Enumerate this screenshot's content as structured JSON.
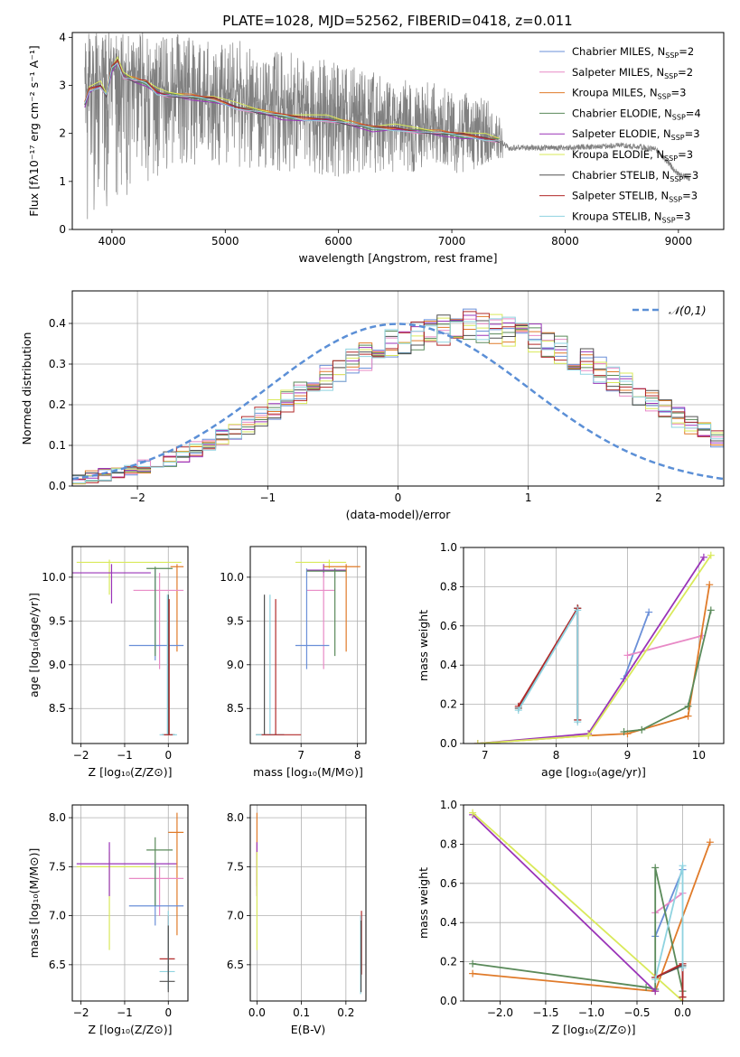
{
  "figure_title": "PLATE=1028, MJD=52562, FIBERID=0418, z=0.011",
  "colors": {
    "Chabrier MILES": "#6a8fd8",
    "Salpeter MILES": "#e88ac6",
    "Kroupa MILES": "#e07b2a",
    "Chabrier ELODIE": "#5a8a5a",
    "Salpeter ELODIE": "#9a34b8",
    "Kroupa ELODIE": "#d9e95a",
    "Chabrier STELIB": "#505050",
    "Salpeter STELIB": "#b22a2a",
    "Kroupa STELIB": "#8fd3e0",
    "data": "#808080",
    "gaussian": "#5b8fd6"
  },
  "chart_data": [
    {
      "id": "spectrum",
      "type": "line",
      "title": "PLATE=1028, MJD=52562, FIBERID=0418, z=0.011",
      "xlabel": "wavelength [Angstrom, rest frame]",
      "ylabel": "Flux [fλ10⁻¹⁷ erg cm⁻² s⁻¹ A⁻¹]",
      "xlim": [
        3650,
        9400
      ],
      "ylim": [
        0,
        4.1
      ],
      "xticks": [
        4000,
        5000,
        6000,
        7000,
        8000,
        9000
      ],
      "yticks": [
        0,
        1,
        2,
        3,
        4
      ],
      "grid": false,
      "legend_position": "top-right",
      "legend": [
        {
          "model": "Chabrier MILES",
          "label": "Chabrier MILES, N",
          "sub": "SSP",
          "n": "=2"
        },
        {
          "model": "Salpeter MILES",
          "label": "Salpeter MILES, N",
          "sub": "SSP",
          "n": "=2"
        },
        {
          "model": "Kroupa MILES",
          "label": "Kroupa MILES, N",
          "sub": "SSP",
          "n": "=3"
        },
        {
          "model": "Chabrier ELODIE",
          "label": "Chabrier ELODIE, N",
          "sub": "SSP",
          "n": "=4"
        },
        {
          "model": "Salpeter ELODIE",
          "label": "Salpeter ELODIE, N",
          "sub": "SSP",
          "n": "=3"
        },
        {
          "model": "Kroupa ELODIE",
          "label": "Kroupa ELODIE, N",
          "sub": "SSP",
          "n": "=3"
        },
        {
          "model": "Chabrier STELIB",
          "label": "Chabrier STELIB, N",
          "sub": "SSP",
          "n": "=3"
        },
        {
          "model": "Salpeter STELIB",
          "label": "Salpeter STELIB, N",
          "sub": "SSP",
          "n": "=3"
        },
        {
          "model": "Kroupa STELIB",
          "label": "Kroupa STELIB, N",
          "sub": "SSP",
          "n": "=3"
        }
      ],
      "data_envelope": {
        "x": [
          3760,
          3850,
          4000,
          4200,
          4500,
          5000,
          5500,
          6000,
          6500,
          7000,
          7400,
          7500,
          8000,
          8500,
          8800,
          9000,
          9100
        ],
        "y_lower": [
          0,
          0.3,
          0.5,
          0.8,
          1.2,
          1.3,
          1.2,
          1.1,
          1.2,
          1.1,
          1.4,
          1.55,
          1.65,
          1.7,
          1.65,
          1.1,
          1.0
        ],
        "y_upper": [
          4.1,
          4.1,
          4.1,
          4.1,
          4.1,
          4.0,
          3.8,
          3.5,
          3.2,
          3.0,
          2.6,
          1.75,
          1.75,
          1.78,
          1.7,
          1.2,
          1.1
        ],
        "y_center": [
          2.9,
          3.0,
          3.3,
          3.1,
          2.9,
          2.75,
          2.55,
          2.35,
          2.25,
          2.05,
          1.9,
          1.7,
          1.7,
          1.75,
          1.68,
          1.15,
          1.05
        ]
      },
      "models": {
        "x": [
          3760,
          3800,
          3900,
          3950,
          4000,
          4050,
          4100,
          4200,
          4300,
          4400,
          4500,
          4700,
          4900,
          5100,
          5300,
          5500,
          5700,
          5900,
          6100,
          6300,
          6500,
          6700,
          6900,
          7100,
          7300,
          7420
        ],
        "y": [
          2.6,
          2.9,
          3.0,
          2.8,
          3.35,
          3.5,
          3.2,
          3.1,
          3.05,
          2.85,
          2.8,
          2.75,
          2.7,
          2.55,
          2.45,
          2.35,
          2.3,
          2.3,
          2.2,
          2.1,
          2.1,
          2.05,
          2.0,
          1.95,
          1.9,
          1.85
        ],
        "offsets": {
          "Chabrier MILES": 0.0,
          "Salpeter MILES": -0.02,
          "Kroupa MILES": 0.03,
          "Chabrier ELODIE": 0.0,
          "Salpeter ELODIE": -0.03,
          "Kroupa ELODIE": 0.06,
          "Chabrier STELIB": 0.0,
          "Salpeter STELIB": 0.02,
          "Kroupa STELIB": -0.01
        }
      }
    },
    {
      "id": "residuals",
      "type": "bar",
      "xlabel": "(data-model)/error",
      "ylabel": "Normed distribution",
      "xlim": [
        -2.5,
        2.5
      ],
      "ylim": [
        0,
        0.48
      ],
      "xticks": [
        -2,
        -1,
        0,
        1,
        2
      ],
      "yticks": [
        0.0,
        0.1,
        0.2,
        0.3,
        0.4
      ],
      "grid": true,
      "legend_position": "top-right",
      "gaussian_label": "𝒩(0,1)",
      "bin_edges_start": -2.5,
      "bin_width": 0.1,
      "hist_base": [
        0.018,
        0.022,
        0.028,
        0.033,
        0.04,
        0.048,
        0.057,
        0.066,
        0.077,
        0.089,
        0.103,
        0.118,
        0.134,
        0.151,
        0.169,
        0.188,
        0.207,
        0.227,
        0.247,
        0.266,
        0.285,
        0.303,
        0.32,
        0.335,
        0.348,
        0.36,
        0.37,
        0.378,
        0.384,
        0.388,
        0.4,
        0.388,
        0.384,
        0.378,
        0.37,
        0.36,
        0.348,
        0.335,
        0.32,
        0.303,
        0.285,
        0.266,
        0.247,
        0.227,
        0.207,
        0.188,
        0.169,
        0.151,
        0.134,
        0.118,
        0.103,
        0.089,
        0.077,
        0.066,
        0.057,
        0.048,
        0.04,
        0.033,
        0.028,
        0.022
      ],
      "jitter": 0.035
    },
    {
      "id": "age-vs-Z",
      "type": "scatter",
      "xlabel": "Z [log₁₀(Z/Z⊙)]",
      "ylabel": "age  [log₁₀(age/yr)]",
      "xlim": [
        -2.2,
        0.45
      ],
      "ylim": [
        8.1,
        10.35
      ],
      "xticks": [
        -2,
        -1,
        0
      ],
      "yticks": [
        8.5,
        9.0,
        9.5,
        10.0
      ],
      "grid": true,
      "errorbars": [
        {
          "model": "Kroupa ELODIE",
          "x": -1.35,
          "y": 10.17,
          "xlo": -2.1,
          "xhi": 0.3,
          "ylo": 9.8,
          "yhi": 10.2
        },
        {
          "model": "Salpeter ELODIE",
          "x": -1.3,
          "y": 10.05,
          "xlo": -2.2,
          "xhi": -0.4,
          "ylo": 9.7,
          "yhi": 10.15
        },
        {
          "model": "Kroupa MILES",
          "x": 0.2,
          "y": 10.12,
          "xlo": 0.05,
          "xhi": 0.35,
          "ylo": 9.15,
          "yhi": 10.15
        },
        {
          "model": "Salpeter MILES",
          "x": -0.2,
          "y": 9.85,
          "xlo": -0.8,
          "xhi": 0.35,
          "ylo": 8.95,
          "yhi": 10.05
        },
        {
          "model": "Chabrier MILES",
          "x": -0.3,
          "y": 9.22,
          "xlo": -0.9,
          "xhi": 0.35,
          "ylo": 9.05,
          "yhi": 10.1
        },
        {
          "model": "Chabrier ELODIE",
          "x": -0.3,
          "y": 10.1,
          "xlo": -0.5,
          "xhi": 0.1,
          "ylo": 9.1,
          "yhi": 10.12
        },
        {
          "model": "Chabrier STELIB",
          "x": 0.0,
          "y": 8.2,
          "xlo": -0.15,
          "xhi": 0.15,
          "ylo": 8.2,
          "yhi": 9.8
        },
        {
          "model": "Kroupa STELIB",
          "x": -0.02,
          "y": 8.2,
          "xlo": -0.2,
          "xhi": 0.2,
          "ylo": 8.2,
          "yhi": 9.8
        },
        {
          "model": "Salpeter STELIB",
          "x": 0.02,
          "y": 8.2,
          "xlo": -0.1,
          "xhi": 0.1,
          "ylo": 8.2,
          "yhi": 9.75
        }
      ]
    },
    {
      "id": "age-vs-mass",
      "type": "scatter",
      "xlabel": "mass [log₁₀(M/M⊙)]",
      "ylabel": "",
      "xlim": [
        6.1,
        8.15
      ],
      "ylim": [
        8.1,
        10.35
      ],
      "xticks": [
        7,
        8
      ],
      "yticks": [
        8.5,
        9.0,
        9.5,
        10.0
      ],
      "grid": true,
      "errorbars": [
        {
          "model": "Kroupa ELODIE",
          "x": 7.5,
          "y": 10.17,
          "xlo": 6.9,
          "xhi": 7.8,
          "ylo": 10.1,
          "yhi": 10.2
        },
        {
          "model": "Salpeter ELODIE",
          "x": 7.4,
          "y": 10.08,
          "xlo": 7.1,
          "xhi": 7.8,
          "ylo": 10.0,
          "yhi": 10.15
        },
        {
          "model": "Kroupa MILES",
          "x": 7.8,
          "y": 10.12,
          "xlo": 7.4,
          "xhi": 8.05,
          "ylo": 9.15,
          "yhi": 10.15
        },
        {
          "model": "Salpeter MILES",
          "x": 7.4,
          "y": 9.85,
          "xlo": 7.1,
          "xhi": 7.6,
          "ylo": 8.95,
          "yhi": 10.05
        },
        {
          "model": "Chabrier MILES",
          "x": 7.1,
          "y": 9.22,
          "xlo": 6.9,
          "xhi": 7.5,
          "ylo": 8.95,
          "yhi": 10.1
        },
        {
          "model": "Chabrier ELODIE",
          "x": 7.6,
          "y": 10.07,
          "xlo": 7.1,
          "xhi": 7.8,
          "ylo": 9.1,
          "yhi": 10.1
        },
        {
          "model": "Chabrier STELIB",
          "x": 6.35,
          "y": 8.2,
          "xlo": 6.2,
          "xhi": 6.7,
          "ylo": 8.2,
          "yhi": 9.8
        },
        {
          "model": "Kroupa STELIB",
          "x": 6.45,
          "y": 8.2,
          "xlo": 6.2,
          "xhi": 6.7,
          "ylo": 8.2,
          "yhi": 9.8
        },
        {
          "model": "Salpeter STELIB",
          "x": 6.55,
          "y": 8.2,
          "xlo": 6.3,
          "xhi": 7.0,
          "ylo": 8.2,
          "yhi": 9.75
        }
      ]
    },
    {
      "id": "weight-vs-age",
      "type": "line",
      "xlabel": "age  [log₁₀(age/yr)]",
      "ylabel": "mass weight",
      "xlim": [
        6.7,
        10.35
      ],
      "ylim": [
        0,
        1.0
      ],
      "xticks": [
        7,
        8,
        9,
        10
      ],
      "yticks": [
        0.0,
        0.2,
        0.4,
        0.6,
        0.8,
        1.0
      ],
      "grid": true,
      "series": [
        {
          "model": "Chabrier MILES",
          "x": [
            8.95,
            9.3
          ],
          "y": [
            0.33,
            0.67
          ]
        },
        {
          "model": "Salpeter MILES",
          "x": [
            9.0,
            10.05
          ],
          "y": [
            0.45,
            0.55
          ]
        },
        {
          "model": "Kroupa MILES",
          "x": [
            6.9,
            8.45,
            9.0,
            9.85,
            10.15
          ],
          "y": [
            0.0,
            0.04,
            0.05,
            0.14,
            0.81
          ]
        },
        {
          "model": "Chabrier ELODIE",
          "x": [
            8.95,
            9.2,
            9.85,
            10.17
          ],
          "y": [
            0.06,
            0.07,
            0.19,
            0.68
          ]
        },
        {
          "model": "Salpeter ELODIE",
          "x": [
            6.9,
            8.45,
            10.07
          ],
          "y": [
            0.0,
            0.05,
            0.95
          ]
        },
        {
          "model": "Kroupa ELODIE",
          "x": [
            6.9,
            8.45,
            10.17
          ],
          "y": [
            0.0,
            0.04,
            0.96
          ]
        },
        {
          "model": "Chabrier STELIB",
          "x": [
            7.47,
            8.3,
            8.3
          ],
          "y": [
            0.18,
            0.69,
            0.12
          ]
        },
        {
          "model": "Salpeter STELIB",
          "x": [
            7.47,
            8.3,
            8.3
          ],
          "y": [
            0.19,
            0.69,
            0.12
          ]
        },
        {
          "model": "Kroupa STELIB",
          "x": [
            7.47,
            8.3,
            8.3
          ],
          "y": [
            0.17,
            0.68,
            0.11
          ]
        }
      ]
    },
    {
      "id": "mass-vs-Z",
      "type": "scatter",
      "xlabel": "Z [log₁₀(Z/Z⊙)]",
      "ylabel": "mass [log₁₀(M/M⊙)]",
      "xlim": [
        -2.2,
        0.45
      ],
      "ylim": [
        6.13,
        8.13
      ],
      "xticks": [
        -2,
        -1,
        0
      ],
      "yticks": [
        6.5,
        7.0,
        7.5,
        8.0
      ],
      "grid": true,
      "errorbars": [
        {
          "model": "Kroupa ELODIE",
          "x": -1.35,
          "y": 7.5,
          "xlo": -2.1,
          "xhi": -0.4,
          "ylo": 6.65,
          "yhi": 7.65
        },
        {
          "model": "Salpeter ELODIE",
          "x": -1.35,
          "y": 7.53,
          "xlo": -2.1,
          "xhi": 0.2,
          "ylo": 7.2,
          "yhi": 7.75
        },
        {
          "model": "Kroupa MILES",
          "x": 0.2,
          "y": 7.85,
          "xlo": 0.0,
          "xhi": 0.35,
          "ylo": 6.8,
          "yhi": 8.05
        },
        {
          "model": "Salpeter MILES",
          "x": -0.2,
          "y": 7.38,
          "xlo": -0.9,
          "xhi": 0.35,
          "ylo": 7.0,
          "yhi": 7.5
        },
        {
          "model": "Chabrier MILES",
          "x": -0.3,
          "y": 7.1,
          "xlo": -0.9,
          "xhi": 0.35,
          "ylo": 6.9,
          "yhi": 7.55
        },
        {
          "model": "Chabrier ELODIE",
          "x": -0.3,
          "y": 7.67,
          "xlo": -0.5,
          "xhi": 0.1,
          "ylo": 7.1,
          "yhi": 7.8
        },
        {
          "model": "Salpeter STELIB",
          "x": 0.0,
          "y": 6.56,
          "xlo": -0.2,
          "xhi": 0.15,
          "ylo": 6.4,
          "yhi": 7.0
        },
        {
          "model": "Kroupa STELIB",
          "x": 0.0,
          "y": 6.43,
          "xlo": -0.2,
          "xhi": 0.15,
          "ylo": 6.25,
          "yhi": 7.05
        },
        {
          "model": "Chabrier STELIB",
          "x": 0.0,
          "y": 6.33,
          "xlo": -0.2,
          "xhi": 0.15,
          "ylo": 6.22,
          "yhi": 6.9
        }
      ]
    },
    {
      "id": "mass-vs-ebv",
      "type": "scatter",
      "xlabel": "E(B-V)",
      "ylabel": "",
      "xlim": [
        -0.015,
        0.245
      ],
      "ylim": [
        6.13,
        8.13
      ],
      "xticks": [
        0.0,
        0.1,
        0.2
      ],
      "yticks": [
        6.5,
        7.0,
        7.5,
        8.0
      ],
      "grid": true,
      "errorbars": [
        {
          "model": "Kroupa MILES",
          "x": 0.0,
          "y": 7.85,
          "xlo": 0.0,
          "xhi": 0.0,
          "ylo": 7.3,
          "yhi": 8.05
        },
        {
          "model": "Salpeter ELODIE",
          "x": 0.0,
          "y": 7.6,
          "xlo": 0.0,
          "xhi": 0.0,
          "ylo": 7.2,
          "yhi": 7.75
        },
        {
          "model": "Kroupa ELODIE",
          "x": 0.0,
          "y": 7.2,
          "xlo": 0.0,
          "xhi": 0.0,
          "ylo": 6.65,
          "yhi": 7.65
        },
        {
          "model": "Salpeter STELIB",
          "x": 0.235,
          "y": 6.6,
          "xlo": 0.235,
          "xhi": 0.235,
          "ylo": 6.4,
          "yhi": 7.05
        },
        {
          "model": "Kroupa STELIB",
          "x": 0.233,
          "y": 6.55,
          "xlo": 0.233,
          "xhi": 0.233,
          "ylo": 6.2,
          "yhi": 7.0
        },
        {
          "model": "Chabrier STELIB",
          "x": 0.234,
          "y": 6.5,
          "xlo": 0.234,
          "xhi": 0.234,
          "ylo": 6.22,
          "yhi": 6.95
        }
      ]
    },
    {
      "id": "weight-vs-Z",
      "type": "line",
      "xlabel": "Z [log₁₀(Z/Z⊙)]",
      "ylabel": "mass weight",
      "xlim": [
        -2.4,
        0.45
      ],
      "ylim": [
        0,
        1.0
      ],
      "xticks": [
        -2.0,
        -1.5,
        -1.0,
        -0.5,
        0.0
      ],
      "yticks": [
        0.0,
        0.2,
        0.4,
        0.6,
        0.8,
        1.0
      ],
      "grid": true,
      "series": [
        {
          "model": "Chabrier MILES",
          "x": [
            -0.3,
            0.0
          ],
          "y": [
            0.33,
            0.67
          ]
        },
        {
          "model": "Salpeter MILES",
          "x": [
            -0.3,
            0.0
          ],
          "y": [
            0.45,
            0.55
          ]
        },
        {
          "model": "Kroupa MILES",
          "x": [
            -2.3,
            -0.3,
            0.3
          ],
          "y": [
            0.14,
            0.05,
            0.81
          ]
        },
        {
          "model": "Chabrier ELODIE",
          "x": [
            -2.3,
            -0.4,
            -0.3,
            -0.3,
            0.0
          ],
          "y": [
            0.19,
            0.07,
            0.06,
            0.68,
            0.05
          ]
        },
        {
          "model": "Salpeter ELODIE",
          "x": [
            -2.3,
            -0.3
          ],
          "y": [
            0.95,
            0.05
          ]
        },
        {
          "model": "Kroupa ELODIE",
          "x": [
            -2.3,
            0.0
          ],
          "y": [
            0.96,
            0.0
          ]
        },
        {
          "model": "Chabrier STELIB",
          "x": [
            -0.3,
            0.0,
            0.0
          ],
          "y": [
            0.12,
            0.18,
            0.02
          ]
        },
        {
          "model": "Salpeter STELIB",
          "x": [
            -0.3,
            0.0,
            0.0
          ],
          "y": [
            0.12,
            0.19,
            0.02
          ]
        },
        {
          "model": "Kroupa STELIB",
          "x": [
            -0.3,
            0.0,
            0.0
          ],
          "y": [
            0.11,
            0.69,
            0.17
          ]
        }
      ]
    }
  ]
}
